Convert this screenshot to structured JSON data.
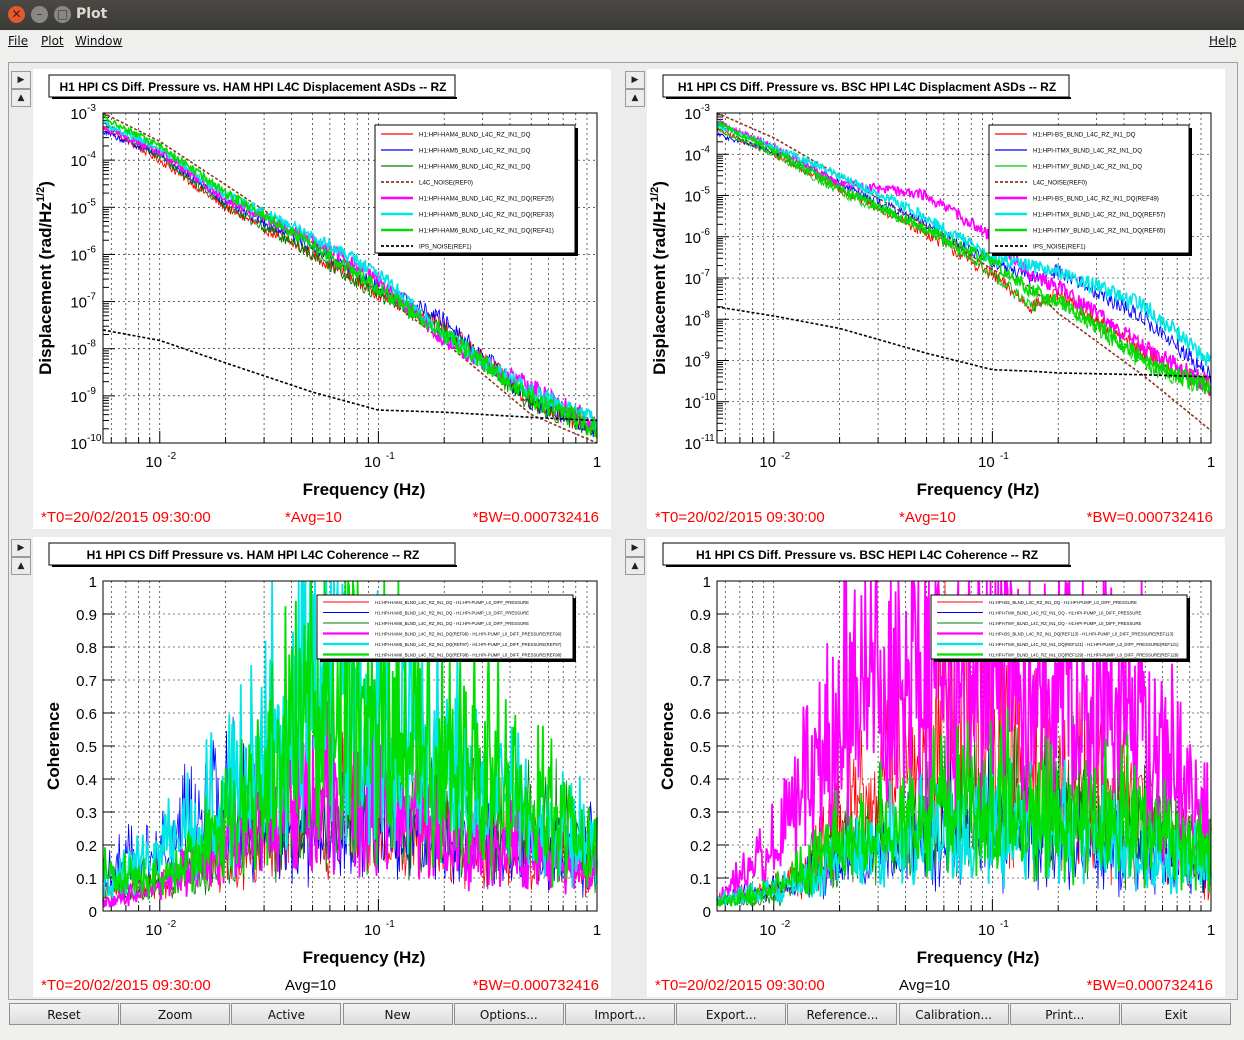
{
  "window": {
    "title": "Plot"
  },
  "menu": {
    "file": "File",
    "plot": "Plot",
    "window": "Window",
    "help": "Help"
  },
  "colors": {
    "red": "#ff0000",
    "blue": "#0000ff",
    "green": "#008000",
    "magenta": "#ff00ff",
    "cyan": "#00e5e5",
    "lime": "#00dd00",
    "brown": "#8b3a1a",
    "black": "#000000"
  },
  "panels": [
    {
      "title": "H1 HPI CS Diff. Pressure vs. HAM HPI L4C Displacement ASDs -- RZ",
      "ylabel": "Displacement (rad/Hz^1/2)",
      "ylabel_main": "Displacement (rad/Hz",
      "ylabel_sup": "1/2",
      "ylabel_end": ")",
      "xlabel": "Frequency (Hz)",
      "xticks": [
        "10",
        "-2",
        "10",
        "-1",
        "1"
      ],
      "yticks": [
        {
          "base": "10",
          "exp": "-3"
        },
        {
          "base": "10",
          "exp": "-4"
        },
        {
          "base": "10",
          "exp": "-5"
        },
        {
          "base": "10",
          "exp": "-6"
        },
        {
          "base": "10",
          "exp": "-7"
        },
        {
          "base": "10",
          "exp": "-8"
        },
        {
          "base": "10",
          "exp": "-9"
        },
        {
          "base": "10",
          "exp": "-10"
        }
      ],
      "legend": [
        "H1:HPI-HAM4_BLND_L4C_RZ_IN1_DQ",
        "H1:HPI-HAM5_BLND_L4C_RZ_IN1_DQ",
        "H1:HPI-HAM6_BLND_L4C_RZ_IN1_DQ",
        "L4C_NOISE(REF0)",
        "H1:HPI-HAM4_BLND_L4C_RZ_IN1_DQ(REF25)",
        "H1:HPI-HAM5_BLND_L4C_RZ_IN1_DQ(REF33)",
        "H1:HPI-HAM6_BLND_L4C_RZ_IN1_DQ(REF41)",
        "IPS_NOISE(REF1)"
      ],
      "footer": {
        "t0": "*T0=20/02/2015 09:30:00",
        "avg": "*Avg=10",
        "bw": "*BW=0.000732416"
      }
    },
    {
      "title": "H1 HPI CS Diff. Pressure vs. BSC HPI L4C Displacment ASDs -- RZ",
      "ylabel": "Displacement (rad/Hz^1/2)",
      "ylabel_main": "Displacement (rad/Hz",
      "ylabel_sup": "1/2",
      "ylabel_end": ")",
      "xlabel": "Frequency (Hz)",
      "xticks": [
        "10",
        "-2",
        "10",
        "-1",
        "1"
      ],
      "yticks": [
        {
          "base": "10",
          "exp": "-3"
        },
        {
          "base": "10",
          "exp": "-4"
        },
        {
          "base": "10",
          "exp": "-5"
        },
        {
          "base": "10",
          "exp": "-6"
        },
        {
          "base": "10",
          "exp": "-7"
        },
        {
          "base": "10",
          "exp": "-8"
        },
        {
          "base": "10",
          "exp": "-9"
        },
        {
          "base": "10",
          "exp": "-10"
        },
        {
          "base": "10",
          "exp": "-11"
        }
      ],
      "legend": [
        "H1:HPI-BS_BLND_L4C_RZ_IN1_DQ",
        "H1:HPI-ITMX_BLND_L4C_RZ_IN1_DQ",
        "H1:HPI-ITMY_BLND_L4C_RZ_IN1_DQ",
        "L4C_NOISE(REF0)",
        "H1:HPI-BS_BLND_L4C_RZ_IN1_DQ(REF49)",
        "H1:HPI-ITMX_BLND_L4C_RZ_IN1_DQ(REF57)",
        "H1:HPI-ITMY_BLND_L4C_RZ_IN1_DQ(REF65)",
        "IPS_NOISE(REF1)"
      ],
      "footer": {
        "t0": "*T0=20/02/2015 09:30:00",
        "avg": "*Avg=10",
        "bw": "*BW=0.000732416"
      }
    },
    {
      "title": "H1 HPI CS Diff Pressure vs. HAM HPI L4C Coherence -- RZ",
      "ylabel": "Coherence",
      "xlabel": "Frequency (Hz)",
      "xticks": [
        "10",
        "-2",
        "10",
        "-1",
        "1"
      ],
      "yticks": [
        "1",
        "0.9",
        "0.8",
        "0.7",
        "0.6",
        "0.5",
        "0.4",
        "0.3",
        "0.2",
        "0.1",
        "0"
      ],
      "legend": [
        "H1:HPI-HAM4_BLND_L4C_RZ_IN1_DQ - H1:HPI-PUMP_L0_DIFF_PRESSURE",
        "H1:HPI-HAM5_BLND_L4C_RZ_IN1_DQ - H1:HPI-PUMP_L0_DIFF_PRESSURE",
        "H1:HPI-HAM6_BLND_L4C_RZ_IN1_DQ - H1:HPI-PUMP_L0_DIFF_PRESSURE",
        "H1:HPI-HAM4_BLND_L4C_RZ_IN1_DQ(REF96) - H1:HPI-PUMP_L0_DIFF_PRESSURE(REF96)",
        "H1:HPI-HAM5_BLND_L4C_RZ_IN1_DQ(REF97) - H1:HPI-PUMP_L0_DIFF_PRESSURE(REF97)",
        "H1:HPI-HAM6_BLND_L4C_RZ_IN1_DQ(REF98) - H1:HPI-PUMP_L0_DIFF_PRESSURE(REF98)"
      ],
      "footer": {
        "t0": "*T0=20/02/2015 09:30:00",
        "avg": "Avg=10",
        "bw": "*BW=0.000732416"
      }
    },
    {
      "title": "H1 HPI CS Diff. Pressure vs. BSC HEPI L4C Coherence -- RZ",
      "ylabel": "Coherence",
      "xlabel": "Frequency (Hz)",
      "xticks": [
        "10",
        "-2",
        "10",
        "-1",
        "1"
      ],
      "yticks": [
        "1",
        "0.9",
        "0.8",
        "0.7",
        "0.6",
        "0.5",
        "0.4",
        "0.3",
        "0.2",
        "0.1",
        "0"
      ],
      "legend": [
        "H1:HPI-BS_BLND_L4C_RZ_IN1_DQ - H1:HPI-PUMP_L0_DIFF_PRESSURE",
        "H1:HPI-ITMX_BLND_L4C_RZ_IN1_DQ - H1:HPI-PUMP_L0_DIFF_PRESSURE",
        "H1:HPI-ITMY_BLND_L4C_RZ_IN1_DQ - H1:HPI-PUMP_L0_DIFF_PRESSURE",
        "H1:HPI-BS_BLND_L4C_RZ_IN1_DQ(REF113) - H1:HPI-PUMP_L0_DIFF_PRESSURE(REF113)",
        "H1:HPI-ITMX_BLND_L4C_RZ_IN1_DQ(REF121) - H1:HPI-PUMP_L0_DIFF_PRESSURE(REF121)",
        "H1:HPI-ITMY_BLND_L4C_RZ_IN1_DQ(REF129) - H1:HPI-PUMP_L0_DIFF_PRESSURE(REF129)"
      ],
      "footer": {
        "t0": "*T0=20/02/2015 09:30:00",
        "avg": "Avg=10",
        "bw": "*BW=0.000732416"
      }
    }
  ],
  "buttons": [
    "Reset",
    "Zoom",
    "Active",
    "New",
    "Options...",
    "Import...",
    "Export...",
    "Reference...",
    "Calibration...",
    "Print...",
    "Exit"
  ],
  "chart_data": [
    {
      "type": "line",
      "title": "H1 HPI CS Diff. Pressure vs. HAM HPI L4C Displacement ASDs -- RZ",
      "xlabel": "Frequency (Hz)",
      "ylabel": "Displacement (rad/Hz^1/2)",
      "xscale": "log",
      "yscale": "log",
      "xlim": [
        0.0055,
        1
      ],
      "ylim": [
        1e-10,
        0.001
      ],
      "grid": true,
      "legend_position": "top-right",
      "x": [
        0.0055,
        0.01,
        0.02,
        0.05,
        0.1,
        0.2,
        0.5,
        1.0
      ],
      "series": [
        {
          "name": "H1:HPI-HAM4_BLND_L4C_RZ_IN1_DQ",
          "color": "#ff0000",
          "values": [
            0.0005,
            0.0001,
            1e-05,
            1e-06,
            1.5e-07,
            3e-08,
            8e-10,
            2e-10
          ]
        },
        {
          "name": "H1:HPI-HAM5_BLND_L4C_RZ_IN1_DQ",
          "color": "#0000ff",
          "values": [
            0.0004,
            0.00013,
            1.3e-05,
            1.5e-06,
            2e-07,
            4e-08,
            8e-10,
            2e-10
          ]
        },
        {
          "name": "H1:HPI-HAM6_BLND_L4C_RZ_IN1_DQ",
          "color": "#008000",
          "values": [
            0.0006,
            0.00012,
            1.1e-05,
            1e-06,
            1.4e-07,
            2.5e-08,
            7e-10,
            2e-10
          ]
        },
        {
          "name": "L4C_NOISE(REF0)",
          "color": "#8b3a1a",
          "dashed": true,
          "values": [
            0.001,
            0.00025,
            3e-05,
            1.8e-06,
            1.6e-07,
            1.4e-08,
            4e-10,
            1e-10
          ]
        },
        {
          "name": "H1:HPI-HAM4_BLND_L4C_RZ_IN1_DQ(REF25)",
          "color": "#ff00ff",
          "values": [
            0.0005,
            0.00015,
            1.5e-05,
            2e-06,
            3e-07,
            1.5e-08,
            1.5e-09,
            2.5e-10
          ]
        },
        {
          "name": "H1:HPI-HAM5_BLND_L4C_RZ_IN1_DQ(REF33)",
          "color": "#00e5e5",
          "values": [
            0.0006,
            0.00018,
            1.8e-05,
            2.5e-06,
            4e-07,
            2e-08,
            1.2e-09,
            3e-10
          ]
        },
        {
          "name": "H1:HPI-HAM6_BLND_L4C_RZ_IN1_DQ(REF41)",
          "color": "#00dd00",
          "values": [
            0.0008,
            0.0002,
            2e-05,
            1.6e-06,
            2e-07,
            2e-08,
            9e-10,
            2e-10
          ]
        },
        {
          "name": "IPS_NOISE(REF1)",
          "color": "#000000",
          "dashed": true,
          "values": [
            2.5e-08,
            1.5e-08,
            5e-09,
            1.2e-09,
            5e-10,
            4.5e-10,
            3.5e-10,
            3e-10
          ]
        }
      ]
    },
    {
      "type": "line",
      "title": "H1 HPI CS Diff. Pressure vs. BSC HPI L4C Displacment ASDs -- RZ",
      "xlabel": "Frequency (Hz)",
      "ylabel": "Displacement (rad/Hz^1/2)",
      "xscale": "log",
      "yscale": "log",
      "xlim": [
        0.0055,
        1
      ],
      "ylim": [
        1e-11,
        0.001
      ],
      "grid": true,
      "legend_position": "top-right",
      "x": [
        0.0055,
        0.01,
        0.02,
        0.05,
        0.1,
        0.15,
        0.2,
        0.5,
        1.0
      ],
      "series": [
        {
          "name": "H1:HPI-BS_BLND_L4C_RZ_IN1_DQ",
          "color": "#ff0000",
          "values": [
            0.0004,
            0.0001,
            1.5e-05,
            1.2e-06,
            1.2e-07,
            2e-08,
            4e-08,
            1.5e-09,
            2e-10
          ]
        },
        {
          "name": "H1:HPI-ITMX_BLND_L4C_RZ_IN1_DQ",
          "color": "#0000ff",
          "values": [
            0.0003,
            0.00012,
            2e-05,
            2e-06,
            2.5e-07,
            1e-07,
            1.5e-07,
            1e-08,
            4e-10
          ]
        },
        {
          "name": "H1:HPI-ITMY_BLND_L4C_RZ_IN1_DQ",
          "color": "#00cc00",
          "values": [
            0.0004,
            0.0001,
            1.2e-05,
            1.5e-06,
            1.3e-07,
            2e-08,
            3e-08,
            8e-10,
            2e-10
          ]
        },
        {
          "name": "L4C_NOISE(REF0)",
          "color": "#8b3a1a",
          "dashed": true,
          "values": [
            0.001,
            0.00025,
            3e-05,
            1.8e-06,
            1.6e-07,
            6e-08,
            1.4e-08,
            4e-10,
            2e-11
          ]
        },
        {
          "name": "H1:HPI-BS_BLND_L4C_RZ_IN1_DQ(REF49)",
          "color": "#ff00ff",
          "values": [
            0.0006,
            0.00015,
            2e-05,
            1e-05,
            1e-06,
            1.2e-07,
            6e-08,
            2e-09,
            2.5e-10
          ]
        },
        {
          "name": "H1:HPI-ITMX_BLND_L4C_RZ_IN1_DQ(REF57)",
          "color": "#00e5e5",
          "values": [
            0.0005,
            0.00015,
            3e-05,
            3e-06,
            3e-07,
            2e-07,
            1.5e-07,
            2e-08,
            1e-09
          ]
        },
        {
          "name": "H1:HPI-ITMY_BLND_L4C_RZ_IN1_DQ(REF65)",
          "color": "#00dd00",
          "values": [
            0.0006,
            0.00012,
            1.5e-05,
            1.5e-06,
            2.5e-07,
            5e-08,
            3e-08,
            1e-09,
            2e-10
          ]
        },
        {
          "name": "IPS_NOISE(REF1)",
          "color": "#000000",
          "dashed": true,
          "values": [
            2e-08,
            1.2e-08,
            6e-09,
            1.5e-09,
            6e-10,
            5.5e-10,
            5e-10,
            4.5e-10,
            4e-10
          ]
        }
      ]
    },
    {
      "type": "line",
      "title": "H1 HPI CS Diff Pressure vs. HAM HPI L4C Coherence -- RZ",
      "xlabel": "Frequency (Hz)",
      "ylabel": "Coherence",
      "xscale": "log",
      "xlim": [
        0.0055,
        1
      ],
      "ylim": [
        0,
        1
      ],
      "grid": true,
      "legend_position": "top-right",
      "x": [
        0.0055,
        0.01,
        0.02,
        0.03,
        0.05,
        0.07,
        0.1,
        0.2,
        0.5,
        1.0
      ],
      "series": [
        {
          "name": "H1:HPI-HAM4_BLND_L4C_RZ_IN1_DQ - H1:HPI-PUMP_L0_DIFF_PRESSURE",
          "color": "#ff0000",
          "values": [
            0.1,
            0.15,
            0.2,
            0.3,
            0.35,
            0.4,
            0.3,
            0.25,
            0.2,
            0.15
          ]
        },
        {
          "name": "H1:HPI-HAM5_BLND_L4C_RZ_IN1_DQ - H1:HPI-PUMP_L0_DIFF_PRESSURE",
          "color": "#0000ff",
          "values": [
            0.2,
            0.3,
            0.5,
            0.35,
            0.3,
            0.3,
            0.35,
            0.25,
            0.2,
            0.2
          ]
        },
        {
          "name": "H1:HPI-HAM6_BLND_L4C_RZ_IN1_DQ - H1:HPI-PUMP_L0_DIFF_PRESSURE",
          "color": "#008000",
          "values": [
            0.1,
            0.1,
            0.2,
            0.35,
            0.4,
            0.4,
            0.45,
            0.4,
            0.3,
            0.2
          ]
        },
        {
          "name": "H1:HPI-HAM4_BLND_L4C_RZ_IN1_DQ(REF96) - H1:HPI-PUMP_L0_DIFF_PRESSURE(REF96)",
          "color": "#ff00ff",
          "values": [
            0.05,
            0.1,
            0.3,
            0.4,
            0.5,
            0.45,
            0.4,
            0.3,
            0.2,
            0.1
          ]
        },
        {
          "name": "H1:HPI-HAM5_BLND_L4C_RZ_IN1_DQ(REF97) - H1:HPI-PUMP_L0_DIFF_PRESSURE(REF97)",
          "color": "#00e5e5",
          "values": [
            0.1,
            0.3,
            0.5,
            0.75,
            0.9,
            0.85,
            0.7,
            0.55,
            0.3,
            0.2
          ]
        },
        {
          "name": "H1:HPI-HAM6_BLND_L4C_RZ_IN1_DQ(REF98) - H1:HPI-PUMP_L0_DIFF_PRESSURE(REF98)",
          "color": "#00dd00",
          "values": [
            0.2,
            0.15,
            0.35,
            0.6,
            0.9,
            0.8,
            0.7,
            0.6,
            0.35,
            0.2
          ]
        }
      ]
    },
    {
      "type": "line",
      "title": "H1 HPI CS Diff. Pressure vs. BSC HEPI L4C Coherence -- RZ",
      "xlabel": "Frequency (Hz)",
      "ylabel": "Coherence",
      "xscale": "log",
      "xlim": [
        0.0055,
        1
      ],
      "ylim": [
        0,
        1
      ],
      "grid": true,
      "legend_position": "top-right",
      "x": [
        0.0055,
        0.01,
        0.015,
        0.02,
        0.05,
        0.08,
        0.1,
        0.2,
        0.5,
        1.0
      ],
      "series": [
        {
          "name": "H1:HPI-BS_BLND_L4C_RZ_IN1_DQ - H1:HPI-PUMP_L0_DIFF_PRESSURE",
          "color": "#ff0000",
          "values": [
            0.05,
            0.1,
            0.2,
            0.4,
            0.7,
            0.8,
            0.6,
            0.5,
            0.3,
            0.15
          ]
        },
        {
          "name": "H1:HPI-ITMX_BLND_L4C_RZ_IN1_DQ - H1:HPI-PUMP_L0_DIFF_PRESSURE",
          "color": "#0000ff",
          "values": [
            0.05,
            0.1,
            0.15,
            0.2,
            0.3,
            0.35,
            0.3,
            0.25,
            0.2,
            0.15
          ]
        },
        {
          "name": "H1:HPI-ITMY_BLND_L4C_RZ_IN1_DQ - H1:HPI-PUMP_L0_DIFF_PRESSURE",
          "color": "#008000",
          "values": [
            0.05,
            0.05,
            0.2,
            0.3,
            0.35,
            0.4,
            0.45,
            0.4,
            0.3,
            0.2
          ]
        },
        {
          "name": "H1:HPI-BS_BLND_L4C_RZ_IN1_DQ(REF113) - H1:HPI-PUMP_L0_DIFF_PRESSURE(REF113)",
          "color": "#ff00ff",
          "values": [
            0.05,
            0.3,
            0.7,
            0.85,
            0.95,
            0.98,
            0.95,
            0.85,
            0.6,
            0.3
          ]
        },
        {
          "name": "H1:HPI-ITMX_BLND_L4C_RZ_IN1_DQ(REF121) - H1:HPI-PUMP_L0_DIFF_PRESSURE(REF121)",
          "color": "#00e5e5",
          "values": [
            0.05,
            0.1,
            0.15,
            0.25,
            0.3,
            0.3,
            0.35,
            0.3,
            0.2,
            0.15
          ]
        },
        {
          "name": "H1:HPI-ITMY_BLND_L4C_RZ_IN1_DQ(REF129) - H1:HPI-PUMP_L0_DIFF_PRESSURE(REF129)",
          "color": "#00dd00",
          "values": [
            0.05,
            0.1,
            0.2,
            0.3,
            0.4,
            0.45,
            0.4,
            0.35,
            0.3,
            0.2
          ]
        }
      ]
    }
  ]
}
